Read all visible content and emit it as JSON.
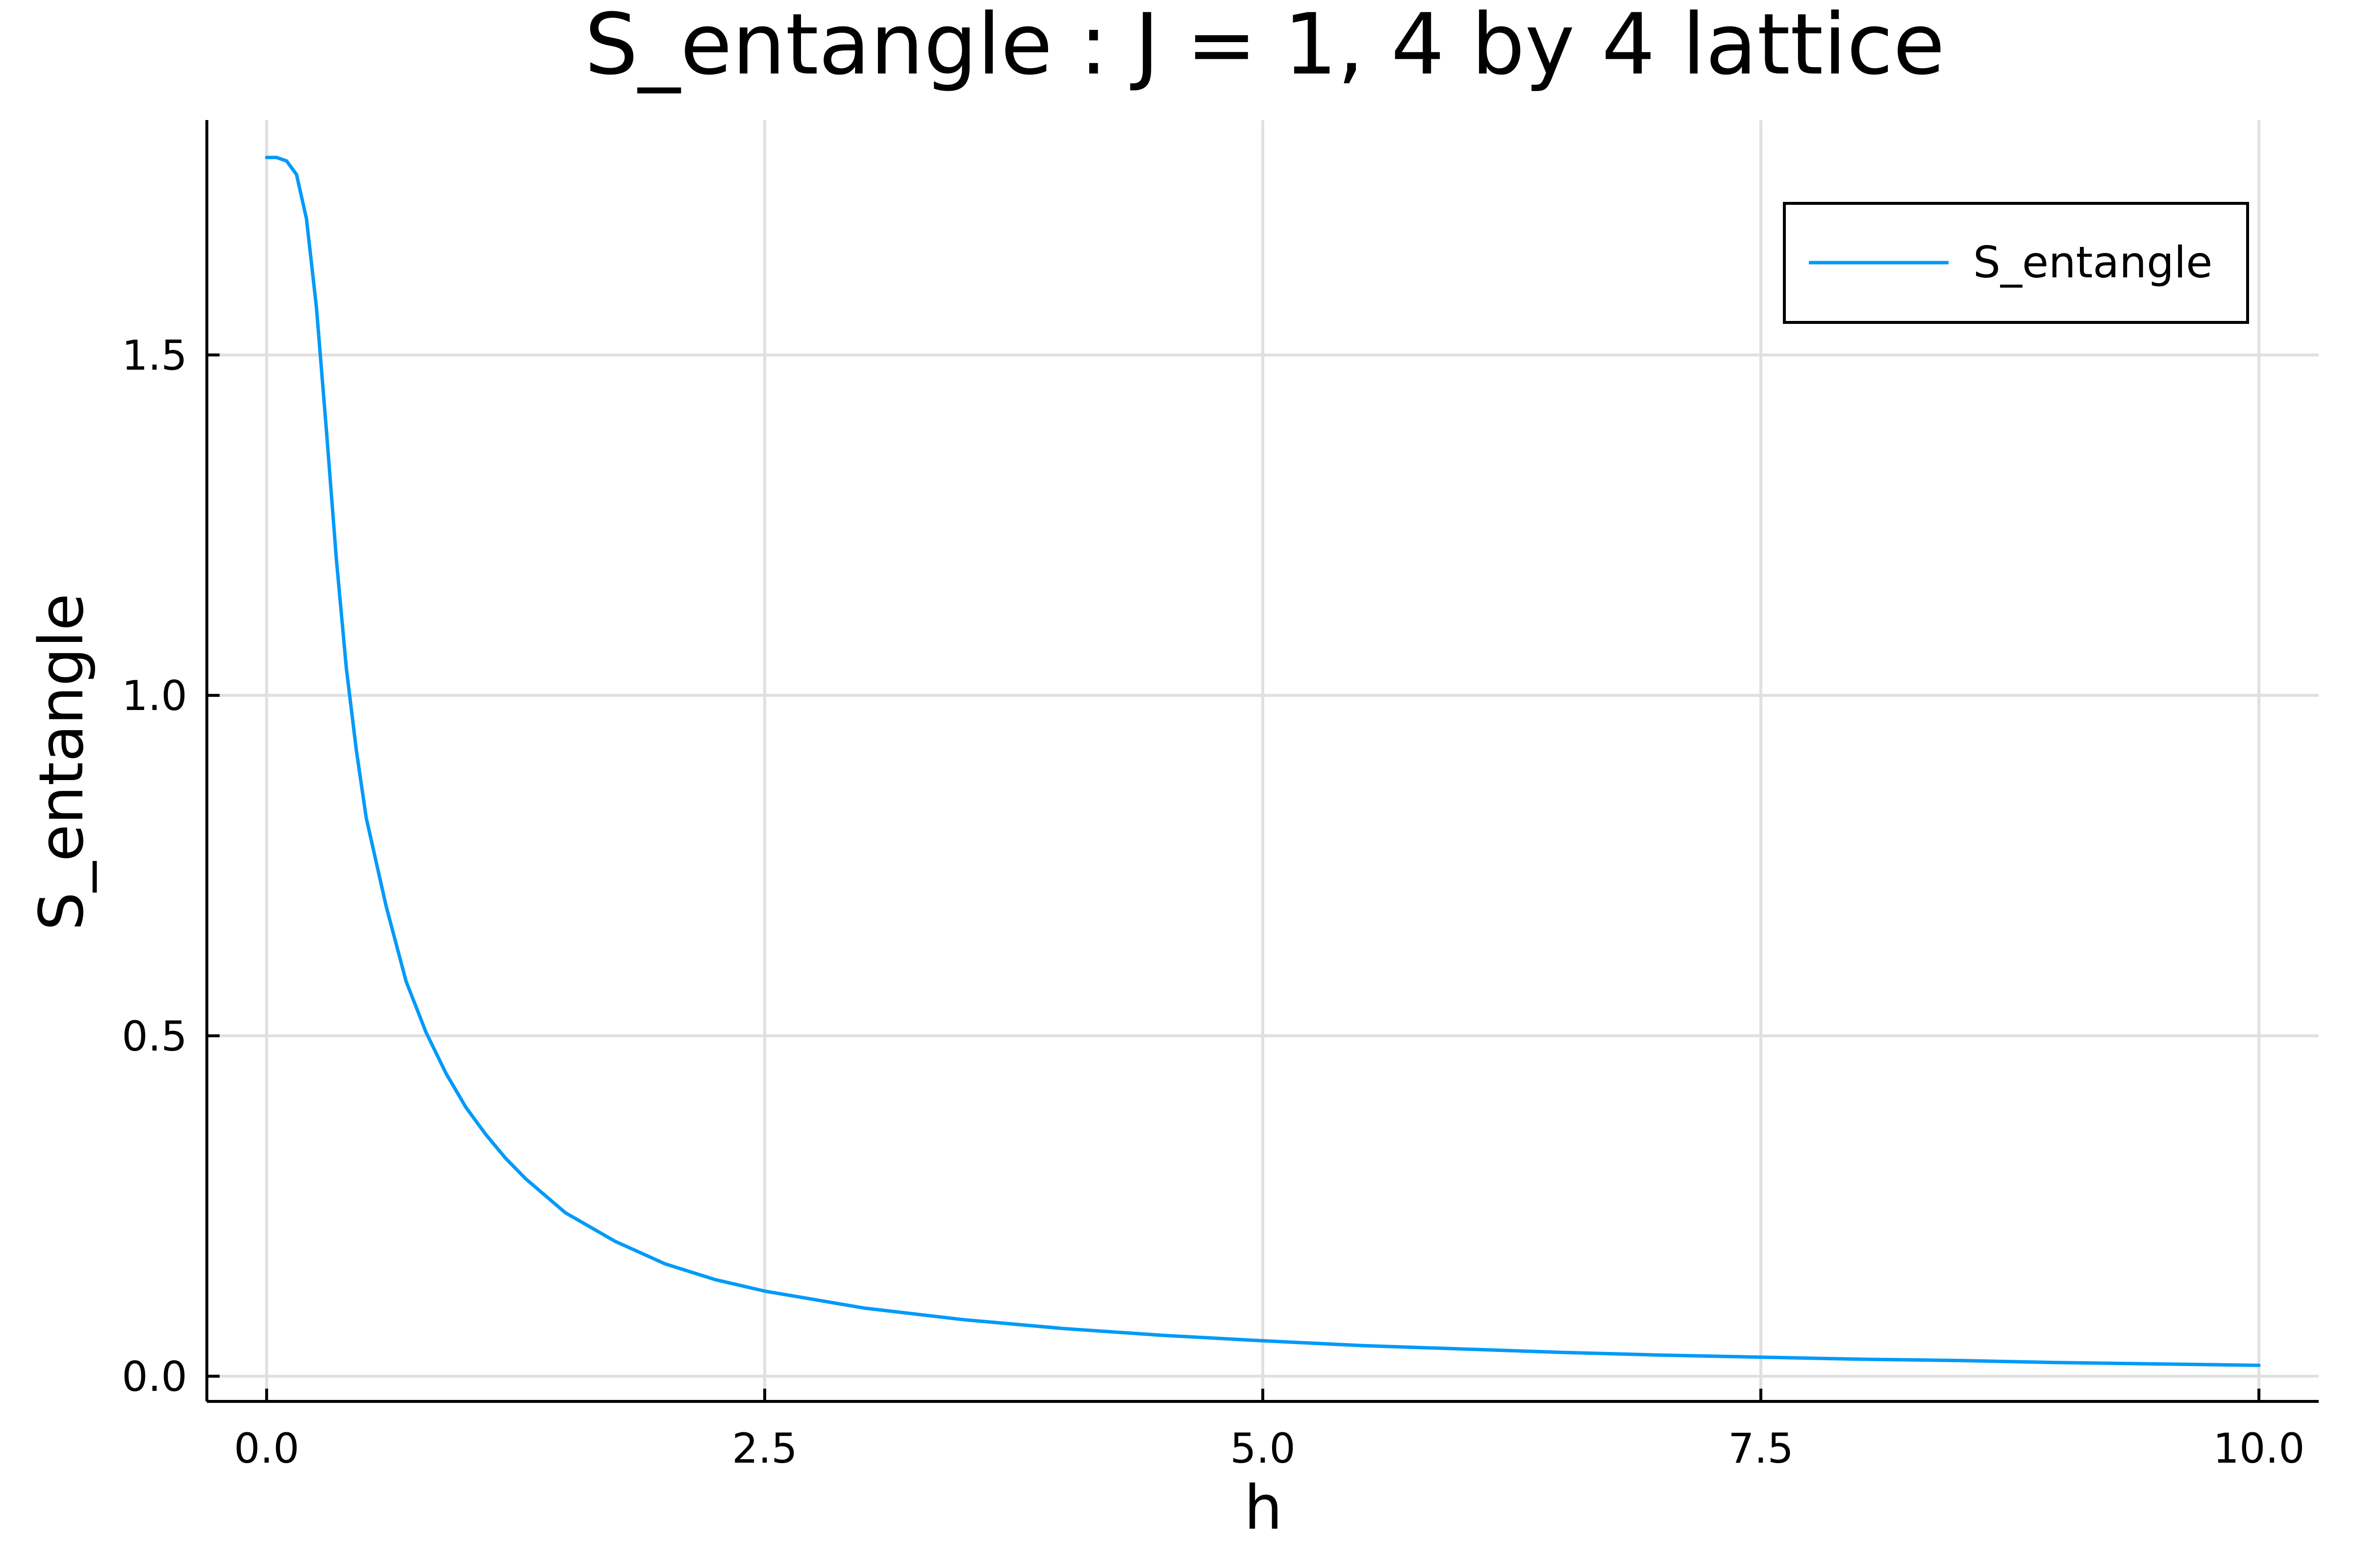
{
  "chart_data": {
    "type": "line",
    "title": "S_entangle : J = 1, 4 by 4 lattice",
    "xlabel": "h",
    "ylabel": "S_entangle",
    "xlim": [
      -0.3,
      10.3
    ],
    "ylim": [
      -0.037,
      1.845
    ],
    "xticks": [
      0,
      2.5,
      5,
      7.5,
      10
    ],
    "xtick_labels": [
      "0.0",
      "2.5",
      "5.0",
      "7.5",
      "10.0"
    ],
    "yticks": [
      0,
      0.5,
      1,
      1.5
    ],
    "ytick_labels": [
      "0.0",
      "0.5",
      "1.0",
      "1.5"
    ],
    "grid": true,
    "legend_position": "top-right",
    "series": [
      {
        "name": "S_entangle",
        "color": "#009af9",
        "x": [
          0,
          0.05,
          0.1,
          0.15,
          0.2,
          0.25,
          0.3,
          0.35,
          0.4,
          0.45,
          0.5,
          0.6,
          0.7,
          0.8,
          0.9,
          1.0,
          1.1,
          1.2,
          1.3,
          1.4,
          1.5,
          1.75,
          2.0,
          2.25,
          2.5,
          3.0,
          3.5,
          4.0,
          4.5,
          5.0,
          5.5,
          6.0,
          6.5,
          7.0,
          7.5,
          8.0,
          8.5,
          9.0,
          9.5,
          10.0
        ],
        "y": [
          1.79,
          1.79,
          1.785,
          1.765,
          1.7,
          1.57,
          1.39,
          1.2,
          1.04,
          0.92,
          0.82,
          0.69,
          0.58,
          0.505,
          0.445,
          0.395,
          0.355,
          0.32,
          0.29,
          0.265,
          0.24,
          0.198,
          0.165,
          0.142,
          0.125,
          0.1,
          0.083,
          0.07,
          0.06,
          0.052,
          0.045,
          0.04,
          0.035,
          0.031,
          0.028,
          0.025,
          0.023,
          0.02,
          0.018,
          0.016
        ]
      }
    ]
  }
}
